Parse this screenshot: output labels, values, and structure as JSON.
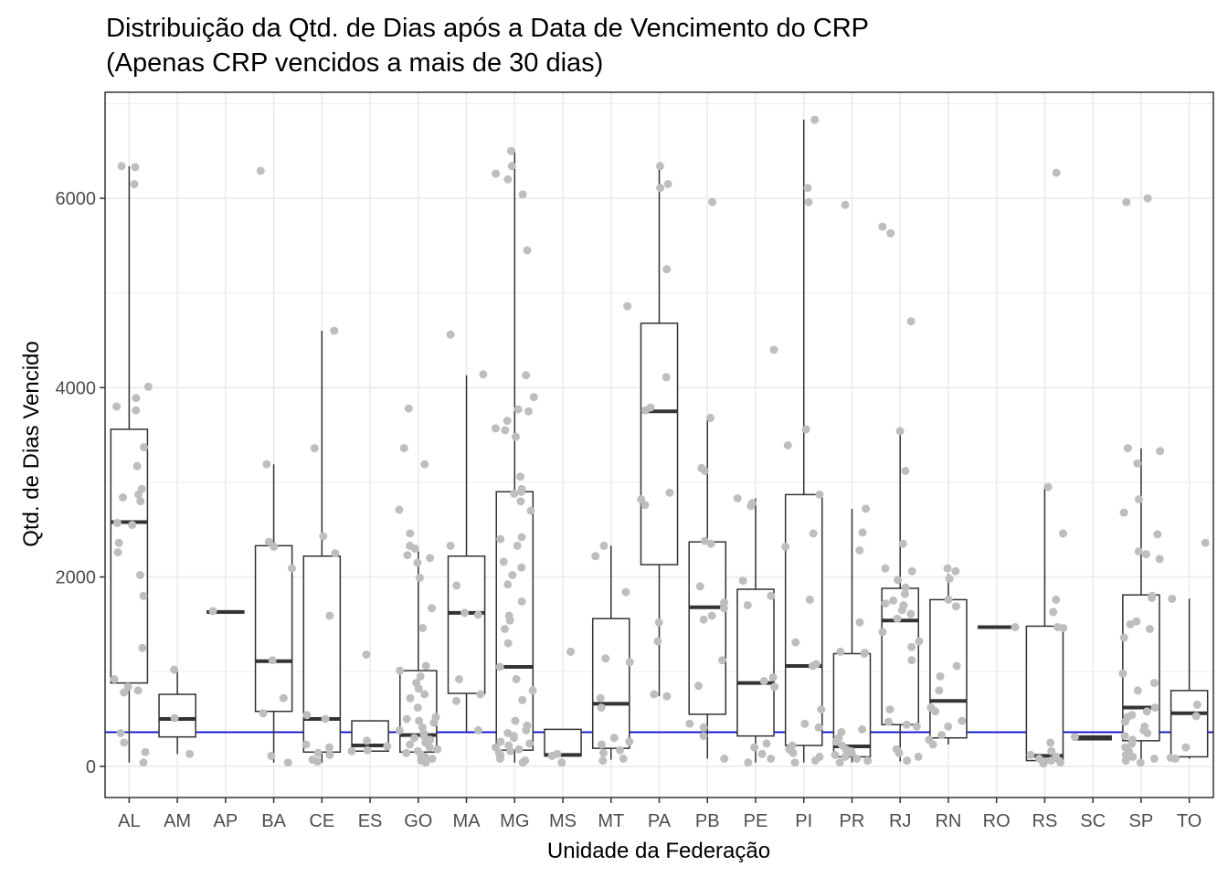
{
  "chart_data": {
    "type": "box",
    "title_lines": [
      "Distribuição da Qtd. de Dias após a Data de Vencimento do CRP",
      "(Apenas CRP vencidos a mais de 30 dias)"
    ],
    "xlabel": "Unidade da Federação",
    "ylabel": "Qtd. de Dias Vencido",
    "ylim": [
      -330,
      7120
    ],
    "yticks": [
      0,
      2000,
      4000,
      6000
    ],
    "grid": true,
    "reference_line": {
      "value": 360,
      "color": "#0000cc"
    },
    "colors": {
      "points": "#bebebe",
      "box": "#333333",
      "grid": "#ebebeb"
    },
    "categories": [
      "AL",
      "AM",
      "AP",
      "BA",
      "CE",
      "ES",
      "GO",
      "MA",
      "MG",
      "MS",
      "MT",
      "PA",
      "PB",
      "PE",
      "PI",
      "PR",
      "RJ",
      "RN",
      "RO",
      "RS",
      "SC",
      "SP",
      "TO"
    ],
    "boxes": [
      {
        "cat": "AL",
        "min": 40,
        "q1": 880,
        "median": 2580,
        "q3": 3560,
        "max": 6340
      },
      {
        "cat": "AM",
        "min": 130,
        "q1": 310,
        "median": 500,
        "q3": 760,
        "max": 1020
      },
      {
        "cat": "AP",
        "min": 1620,
        "q1": 1620,
        "median": 1630,
        "q3": 1640,
        "max": 1640
      },
      {
        "cat": "BA",
        "min": 40,
        "q1": 580,
        "median": 1110,
        "q3": 2330,
        "max": 3190
      },
      {
        "cat": "CE",
        "min": 40,
        "q1": 150,
        "median": 500,
        "q3": 2220,
        "max": 4600
      },
      {
        "cat": "ES",
        "min": 150,
        "q1": 160,
        "median": 220,
        "q3": 480,
        "max": 480
      },
      {
        "cat": "GO",
        "min": 40,
        "q1": 150,
        "median": 330,
        "q3": 1010,
        "max": 2270
      },
      {
        "cat": "MA",
        "min": 370,
        "q1": 770,
        "median": 1620,
        "q3": 2220,
        "max": 4130
      },
      {
        "cat": "MG",
        "min": 40,
        "q1": 170,
        "median": 1050,
        "q3": 2900,
        "max": 6500
      },
      {
        "cat": "MS",
        "min": 110,
        "q1": 110,
        "median": 120,
        "q3": 390,
        "max": 390
      },
      {
        "cat": "MT",
        "min": 70,
        "q1": 190,
        "median": 660,
        "q3": 1560,
        "max": 2330
      },
      {
        "cat": "PA",
        "min": 740,
        "q1": 2130,
        "median": 3750,
        "q3": 4680,
        "max": 6340
      },
      {
        "cat": "PB",
        "min": 80,
        "q1": 550,
        "median": 1680,
        "q3": 2370,
        "max": 3680
      },
      {
        "cat": "PE",
        "min": 40,
        "q1": 320,
        "median": 880,
        "q3": 1870,
        "max": 2830
      },
      {
        "cat": "PI",
        "min": 40,
        "q1": 220,
        "median": 1060,
        "q3": 2870,
        "max": 6830
      },
      {
        "cat": "PR",
        "min": 40,
        "q1": 100,
        "median": 210,
        "q3": 1190,
        "max": 2720
      },
      {
        "cat": "RJ",
        "min": 50,
        "q1": 440,
        "median": 1540,
        "q3": 1880,
        "max": 3540
      },
      {
        "cat": "RN",
        "min": 230,
        "q1": 300,
        "median": 690,
        "q3": 1760,
        "max": 2030
      },
      {
        "cat": "RO",
        "min": 1460,
        "q1": 1460,
        "median": 1470,
        "q3": 1480,
        "max": 1480
      },
      {
        "cat": "RS",
        "min": 30,
        "q1": 60,
        "median": 110,
        "q3": 1480,
        "max": 2950
      },
      {
        "cat": "SC",
        "min": 280,
        "q1": 280,
        "median": 300,
        "q3": 320,
        "max": 320
      },
      {
        "cat": "SP",
        "min": 40,
        "q1": 270,
        "median": 620,
        "q3": 1810,
        "max": 3360
      },
      {
        "cat": "TO",
        "min": 80,
        "q1": 100,
        "median": 560,
        "q3": 800,
        "max": 1770
      }
    ],
    "points": [
      {
        "cat": "AL",
        "values": [
          6330,
          6340,
          6150,
          4010,
          3890,
          3760,
          3800,
          3370,
          3170,
          2930,
          2870,
          2840,
          2800,
          2570,
          2550,
          2360,
          2260,
          2020,
          1800,
          1250,
          920,
          840,
          800,
          780,
          350,
          250,
          150,
          40
        ]
      },
      {
        "cat": "AM",
        "values": [
          1020,
          510,
          130
        ]
      },
      {
        "cat": "AP",
        "values": [
          1640
        ]
      },
      {
        "cat": "BA",
        "values": [
          6290,
          3190,
          2370,
          2320,
          2090,
          1120,
          720,
          560,
          110,
          40
        ]
      },
      {
        "cat": "CE",
        "values": [
          4600,
          3360,
          2430,
          2250,
          1590,
          540,
          500,
          230,
          200,
          140,
          120,
          70,
          50
        ]
      },
      {
        "cat": "ES",
        "values": [
          1180,
          270,
          210,
          170,
          160
        ]
      },
      {
        "cat": "GO",
        "values": [
          3780,
          3360,
          3190,
          2710,
          2460,
          2330,
          2300,
          2230,
          2200,
          2150,
          1990,
          1670,
          1460,
          1060,
          1010,
          950,
          880,
          820,
          760,
          720,
          620,
          520,
          500,
          480,
          460,
          410,
          380,
          350,
          320,
          300,
          280,
          250,
          230,
          200,
          180,
          160,
          140,
          120,
          100,
          80,
          60,
          40
        ]
      },
      {
        "cat": "MA",
        "values": [
          4560,
          4140,
          2330,
          1910,
          1620,
          1600,
          920,
          760,
          690,
          380
        ]
      },
      {
        "cat": "MG",
        "values": [
          6500,
          6340,
          6260,
          6200,
          6040,
          5450,
          4130,
          3900,
          3770,
          3750,
          3650,
          3570,
          3550,
          3480,
          3060,
          2930,
          2900,
          2880,
          2800,
          2700,
          2420,
          2400,
          2330,
          2160,
          2100,
          2020,
          1920,
          1740,
          1590,
          1540,
          1450,
          1300,
          1050,
          920,
          800,
          700,
          480,
          430,
          380,
          350,
          320,
          300,
          260,
          240,
          220,
          200,
          180,
          160,
          140,
          120,
          100,
          80,
          60,
          40
        ]
      },
      {
        "cat": "MS",
        "values": [
          1210,
          130,
          110,
          40
        ]
      },
      {
        "cat": "MT",
        "values": [
          4860,
          2330,
          2220,
          1840,
          1140,
          1100,
          720,
          620,
          300,
          260,
          230,
          170,
          140,
          80,
          60
        ]
      },
      {
        "cat": "PA",
        "values": [
          6340,
          6150,
          6110,
          5250,
          4110,
          3790,
          3760,
          2890,
          2820,
          2760,
          1520,
          1320,
          760,
          740
        ]
      },
      {
        "cat": "PB",
        "values": [
          5960,
          3680,
          3150,
          3120,
          2380,
          2350,
          1900,
          1730,
          1670,
          1590,
          1550,
          1120,
          850,
          450,
          410,
          320,
          80
        ]
      },
      {
        "cat": "PE",
        "values": [
          4400,
          2830,
          2780,
          2750,
          1960,
          1800,
          1700,
          940,
          900,
          840,
          240,
          200,
          130,
          80,
          40
        ]
      },
      {
        "cat": "PI",
        "values": [
          6830,
          6110,
          5960,
          3560,
          3390,
          2870,
          2460,
          2320,
          1760,
          1310,
          1080,
          1060,
          600,
          450,
          410,
          220,
          180,
          140,
          100,
          60,
          40
        ]
      },
      {
        "cat": "PR",
        "values": [
          5930,
          2720,
          2470,
          2280,
          1520,
          1210,
          1200,
          1190,
          390,
          360,
          300,
          260,
          220,
          180,
          160,
          140,
          120,
          100,
          80,
          60,
          40
        ]
      },
      {
        "cat": "RJ",
        "values": [
          5700,
          5630,
          4700,
          3540,
          3120,
          2350,
          2090,
          2060,
          1970,
          1890,
          1820,
          1750,
          1720,
          1700,
          1650,
          1610,
          1560,
          1420,
          1320,
          1260,
          1120,
          600,
          470,
          440,
          420,
          180,
          140,
          100,
          60
        ]
      },
      {
        "cat": "RN",
        "values": [
          2090,
          2060,
          1980,
          1760,
          1690,
          1060,
          950,
          800,
          620,
          580,
          480,
          420,
          330,
          280,
          230
        ]
      },
      {
        "cat": "RO",
        "values": [
          1470
        ]
      },
      {
        "cat": "RS",
        "values": [
          6270,
          2950,
          2460,
          1760,
          1630,
          1470,
          1460,
          250,
          160,
          120,
          100,
          80,
          60,
          50,
          40,
          30
        ]
      },
      {
        "cat": "SC",
        "values": [
          310
        ]
      },
      {
        "cat": "SP",
        "values": [
          6000,
          5960,
          3360,
          3330,
          3200,
          2820,
          2680,
          2450,
          2270,
          2240,
          2190,
          1800,
          1780,
          1530,
          1500,
          1450,
          1360,
          980,
          880,
          800,
          620,
          580,
          540,
          520,
          470,
          420,
          380,
          350,
          320,
          280,
          240,
          200,
          160,
          120,
          100,
          80,
          60,
          40
        ]
      },
      {
        "cat": "TO",
        "values": [
          2360,
          1770,
          650,
          530,
          200,
          90,
          80
        ]
      }
    ]
  }
}
